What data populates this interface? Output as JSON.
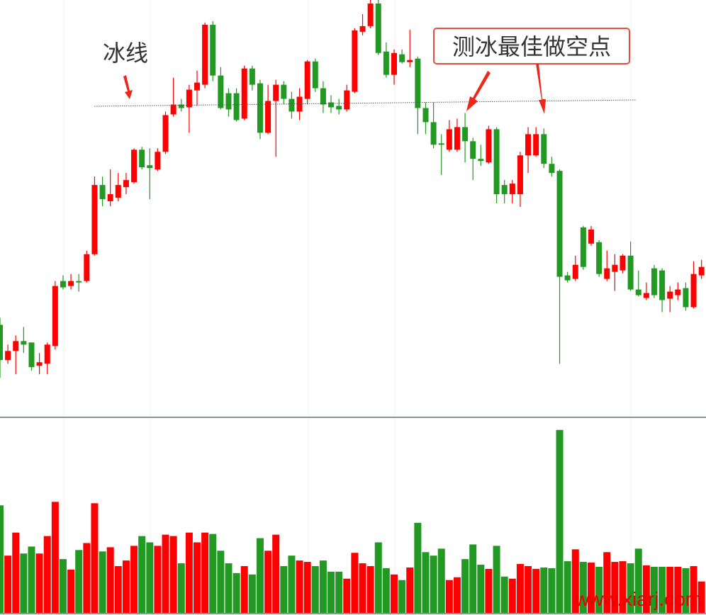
{
  "chart_data": {
    "type": "candlestick",
    "up_color": "#ff0000",
    "down_color": "#229922",
    "ylim": [
      0,
      590
    ],
    "volume_ylim": [
      0,
      278
    ],
    "open": [
      130,
      80,
      93,
      107,
      105,
      72,
      75,
      100,
      192,
      185,
      192,
      192,
      230,
      328,
      305,
      310,
      325,
      332,
      378,
      356,
      350,
      375,
      428,
      442,
      438,
      462,
      470,
      555,
      483,
      458,
      458,
      422,
      493,
      472,
      402,
      447,
      470,
      450,
      432,
      450,
      503,
      465,
      445,
      440,
      435,
      460,
      545,
      553,
      585,
      517,
      484,
      513,
      502,
      507,
      437,
      417,
      387,
      378,
      378,
      410,
      390,
      365,
      360,
      407,
      328,
      315,
      315,
      370,
      370,
      400,
      358,
      348,
      200,
      195,
      268,
      245,
      247,
      195,
      205,
      207,
      228,
      180,
      168,
      210,
      207,
      167,
      172,
      182,
      155,
      200
    ],
    "high": [
      140,
      102,
      115,
      127,
      105,
      90,
      105,
      192,
      200,
      202,
      202,
      235,
      340,
      340,
      350,
      345,
      345,
      380,
      382,
      380,
      380,
      432,
      480,
      450,
      470,
      490,
      558,
      560,
      495,
      465,
      465,
      497,
      497,
      477,
      470,
      477,
      475,
      460,
      465,
      505,
      507,
      475,
      455,
      450,
      470,
      550,
      570,
      590,
      590,
      530,
      520,
      520,
      548,
      510,
      445,
      445,
      400,
      420,
      422,
      430,
      395,
      385,
      412,
      410,
      335,
      335,
      375,
      410,
      410,
      408,
      368,
      350,
      205,
      228,
      270,
      270,
      250,
      235,
      230,
      230,
      248,
      207,
      190,
      215,
      210,
      185,
      190,
      190,
      220,
      222
    ],
    "low": [
      55,
      75,
      60,
      90,
      65,
      60,
      60,
      95,
      180,
      180,
      177,
      190,
      228,
      298,
      298,
      305,
      315,
      330,
      350,
      308,
      348,
      372,
      425,
      432,
      402,
      440,
      465,
      475,
      435,
      425,
      418,
      420,
      462,
      393,
      400,
      368,
      442,
      422,
      420,
      442,
      460,
      430,
      430,
      428,
      432,
      458,
      540,
      550,
      512,
      480,
      470,
      500,
      495,
      400,
      400,
      380,
      342,
      375,
      375,
      360,
      335,
      355,
      358,
      302,
      302,
      302,
      297,
      345,
      368,
      352,
      340,
      75,
      190,
      192,
      208,
      242,
      198,
      192,
      178,
      203,
      178,
      170,
      165,
      168,
      148,
      148,
      165,
      150,
      153,
      195
    ],
    "close": [
      80,
      93,
      107,
      102,
      70,
      77,
      102,
      185,
      183,
      192,
      190,
      230,
      328,
      308,
      315,
      328,
      335,
      378,
      353,
      352,
      375,
      427,
      442,
      437,
      463,
      473,
      555,
      483,
      437,
      435,
      420,
      493,
      470,
      402,
      447,
      470,
      450,
      432,
      453,
      503,
      465,
      442,
      438,
      435,
      462,
      547,
      553,
      585,
      515,
      484,
      515,
      502,
      505,
      437,
      417,
      385,
      385,
      407,
      410,
      390,
      365,
      362,
      407,
      315,
      315,
      330,
      370,
      400,
      400,
      358,
      345,
      198,
      193,
      215,
      212,
      265,
      202,
      210,
      215,
      228,
      180,
      172,
      175,
      172,
      165,
      177,
      180,
      155,
      202,
      212
    ],
    "volume": [
      155,
      83,
      116,
      86,
      96,
      86,
      111,
      160,
      78,
      63,
      91,
      101,
      158,
      89,
      95,
      68,
      76,
      97,
      111,
      102,
      97,
      113,
      111,
      72,
      116,
      102,
      116,
      114,
      90,
      72,
      58,
      68,
      56,
      108,
      90,
      113,
      68,
      83,
      76,
      74,
      68,
      76,
      60,
      60,
      50,
      87,
      72,
      68,
      102,
      65,
      56,
      48,
      66,
      130,
      88,
      83,
      93,
      48,
      52,
      78,
      99,
      70,
      64,
      97,
      53,
      50,
      71,
      68,
      64,
      66,
      65,
      263,
      75,
      92,
      74,
      73,
      67,
      88,
      74,
      75,
      72,
      93,
      69,
      67,
      67,
      67,
      67,
      65,
      68,
      46
    ],
    "annotations": [
      "冰线",
      "测冰最佳做空点"
    ],
    "watermark": "www.xiarj.com"
  }
}
